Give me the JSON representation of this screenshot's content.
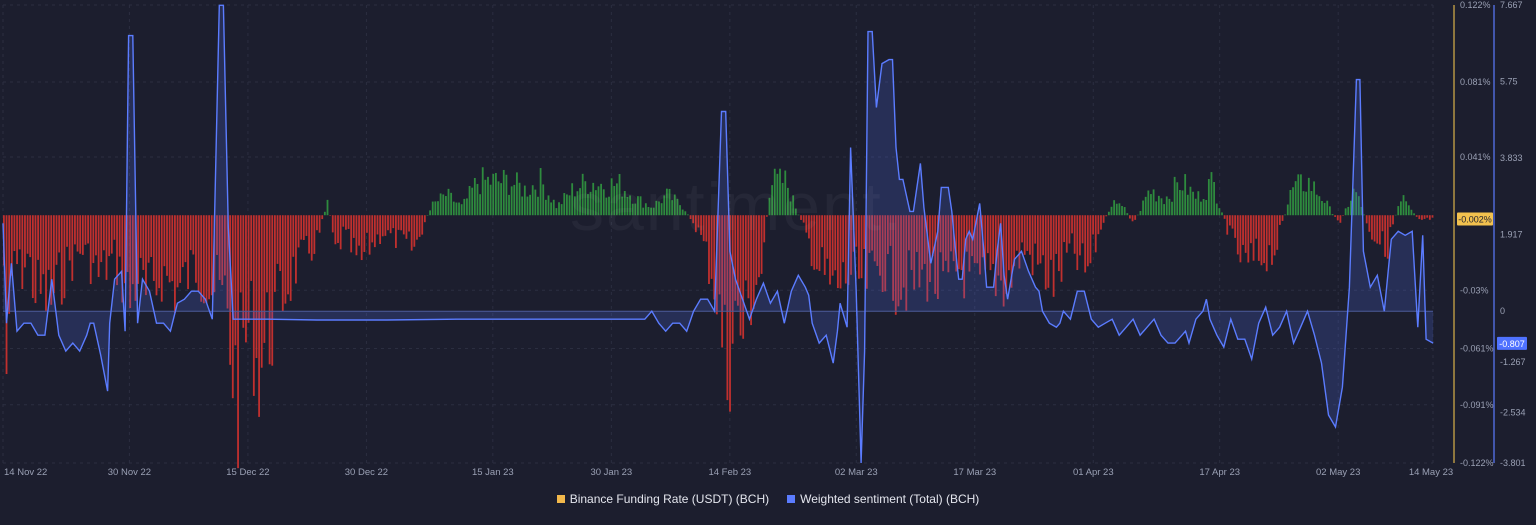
{
  "watermark": "santiment.",
  "colors": {
    "background": "#1c1e2e",
    "funding_positive": "#2e8b3e",
    "funding_negative": "#c0302e",
    "funding_axis": "#d9b24a",
    "sentiment_line": "#5b7cff",
    "sentiment_fill": "rgba(80,110,230,0.22)",
    "grid": "#2b2e40"
  },
  "legend": {
    "funding_label": "Binance Funding Rate (USDT) (BCH)",
    "sentiment_label": "Weighted sentiment (Total) (BCH)",
    "funding_color": "#f2b84b",
    "sentiment_color": "#5b7cff"
  },
  "chart_data": {
    "type": "bar",
    "x_ticks": [
      "14 Nov 22",
      "30 Nov 22",
      "15 Dec 22",
      "30 Dec 22",
      "15 Jan 23",
      "30 Jan 23",
      "14 Feb 23",
      "02 Mar 23",
      "17 Mar 23",
      "01 Apr 23",
      "17 Apr 23",
      "02 May 23",
      "14 May 23"
    ],
    "x_tick_days": [
      0,
      16,
      31,
      46,
      62,
      77,
      92,
      108,
      123,
      138,
      154,
      169,
      181
    ],
    "x_range_days": [
      0,
      181
    ],
    "y_left": {
      "series": "Binance Funding Rate (USDT) (BCH)",
      "ticks": [
        "0.122%",
        "0.081%",
        "0.041%",
        "-0.03%",
        "-0.061%",
        "-0.091%",
        "-0.122%"
      ],
      "tick_values": [
        0.122,
        0.081,
        0.041,
        -0.03,
        -0.061,
        -0.091,
        -0.122
      ],
      "range": [
        -0.122,
        0.122
      ],
      "current_label": "-0.002%",
      "current_value": -0.002
    },
    "y_right": {
      "series": "Weighted sentiment (Total) (BCH)",
      "ticks": [
        "7.667",
        "5.75",
        "3.833",
        "1.917",
        "0",
        "-1.267",
        "-2.534",
        "-3.801"
      ],
      "tick_values": [
        7.667,
        5.75,
        3.833,
        1.917,
        0,
        -1.267,
        -2.534,
        -3.801
      ],
      "range": [
        -3.801,
        7.667
      ],
      "current_label": "-0.807",
      "current_value": -0.807
    },
    "funding_zero_value": 0.01,
    "funding_profile": [
      [
        0,
        -0.03
      ],
      [
        0.5,
        -0.118
      ],
      [
        1.2,
        -0.02
      ],
      [
        2,
        -0.035
      ],
      [
        3,
        -0.025
      ],
      [
        4,
        -0.045
      ],
      [
        6,
        -0.05
      ],
      [
        8,
        -0.03
      ],
      [
        10,
        -0.02
      ],
      [
        12,
        -0.035
      ],
      [
        14,
        -0.025
      ],
      [
        16,
        -0.05
      ],
      [
        17,
        -0.035
      ],
      [
        18,
        -0.05
      ],
      [
        20,
        -0.035
      ],
      [
        22,
        -0.045
      ],
      [
        24,
        -0.03
      ],
      [
        26,
        -0.04
      ],
      [
        28,
        -0.05
      ],
      [
        29.5,
        -0.108
      ],
      [
        30.5,
        -0.07
      ],
      [
        31.5,
        -0.065
      ],
      [
        32,
        -0.09
      ],
      [
        32.5,
        -0.085
      ],
      [
        33.5,
        -0.07
      ],
      [
        35,
        -0.05
      ],
      [
        37,
        -0.03
      ],
      [
        39,
        -0.02
      ],
      [
        40,
        -0.01
      ],
      [
        41,
        0.01
      ],
      [
        42,
        -0.025
      ],
      [
        43,
        -0.01
      ],
      [
        45,
        -0.03
      ],
      [
        46,
        -0.02
      ],
      [
        48,
        -0.01
      ],
      [
        50,
        -0.015
      ],
      [
        52,
        -0.02
      ],
      [
        54,
        0.005
      ],
      [
        56,
        0.012
      ],
      [
        58,
        0.005
      ],
      [
        60,
        0.02
      ],
      [
        62,
        0.02
      ],
      [
        64,
        0.02
      ],
      [
        66,
        0.015
      ],
      [
        68,
        0.02
      ],
      [
        70,
        0.005
      ],
      [
        72,
        0.015
      ],
      [
        74,
        0.02
      ],
      [
        76,
        0.018
      ],
      [
        78,
        0.018
      ],
      [
        80,
        0.01
      ],
      [
        82,
        0.005
      ],
      [
        84,
        0.012
      ],
      [
        86,
        0.005
      ],
      [
        88,
        -0.01
      ],
      [
        90,
        -0.04
      ],
      [
        91.5,
        -0.093
      ],
      [
        92.5,
        -0.06
      ],
      [
        93.5,
        -0.07
      ],
      [
        94.5,
        -0.05
      ],
      [
        96,
        -0.03
      ],
      [
        97,
        0.02
      ],
      [
        99,
        0.02
      ],
      [
        101,
        -0.005
      ],
      [
        103,
        -0.03
      ],
      [
        105,
        -0.045
      ],
      [
        107,
        -0.035
      ],
      [
        109,
        -0.04
      ],
      [
        111,
        -0.03
      ],
      [
        113,
        -0.04
      ],
      [
        115,
        -0.04
      ],
      [
        117,
        -0.035
      ],
      [
        119,
        -0.045
      ],
      [
        121,
        -0.03
      ],
      [
        123,
        -0.045
      ],
      [
        125,
        -0.035
      ],
      [
        127,
        -0.04
      ],
      [
        129,
        -0.02
      ],
      [
        131,
        -0.03
      ],
      [
        133,
        -0.04
      ],
      [
        135,
        -0.02
      ],
      [
        137,
        -0.035
      ],
      [
        139,
        -0.005
      ],
      [
        141,
        0.01
      ],
      [
        143,
        -0.005
      ],
      [
        145,
        0.015
      ],
      [
        147,
        0.01
      ],
      [
        149,
        0.02
      ],
      [
        151,
        0.01
      ],
      [
        153,
        0.02
      ],
      [
        155,
        -0.01
      ],
      [
        157,
        -0.03
      ],
      [
        159,
        -0.025
      ],
      [
        161,
        -0.02
      ],
      [
        163,
        0.015
      ],
      [
        165,
        0.02
      ],
      [
        167,
        0.01
      ],
      [
        169,
        -0.005
      ],
      [
        171,
        0.015
      ],
      [
        173,
        -0.01
      ],
      [
        175,
        -0.02
      ],
      [
        177,
        0.015
      ],
      [
        179,
        -0.003
      ],
      [
        181,
        -0.002
      ]
    ],
    "sentiment_points": [
      [
        0,
        2.2
      ],
      [
        0.5,
        -0.3
      ],
      [
        1.2,
        1.2
      ],
      [
        2,
        -0.5
      ],
      [
        3,
        -0.3
      ],
      [
        4,
        -0.3
      ],
      [
        5,
        -0.6
      ],
      [
        6,
        -0.6
      ],
      [
        7,
        0.8
      ],
      [
        8,
        -0.6
      ],
      [
        9,
        -1.0
      ],
      [
        10,
        -0.8
      ],
      [
        11,
        -1.0
      ],
      [
        12,
        -0.6
      ],
      [
        12.5,
        -0.3
      ],
      [
        13,
        -0.3
      ],
      [
        14,
        -1.1
      ],
      [
        15,
        -2.0
      ],
      [
        15.3,
        -0.3
      ],
      [
        16,
        0.8
      ],
      [
        17,
        1.0
      ],
      [
        17.5,
        -0.5
      ],
      [
        18,
        6.9
      ],
      [
        18.6,
        6.9
      ],
      [
        19.3,
        -0.3
      ],
      [
        20,
        0.8
      ],
      [
        21,
        0.5
      ],
      [
        22,
        -0.3
      ],
      [
        23,
        -0.3
      ],
      [
        24,
        -0.5
      ],
      [
        25,
        0.2
      ],
      [
        26,
        0.3
      ],
      [
        27,
        0.5
      ],
      [
        28,
        0.5
      ],
      [
        29,
        0.3
      ],
      [
        30,
        -0.2
      ],
      [
        31,
        7.66
      ],
      [
        31.6,
        7.66
      ],
      [
        32.3,
        2.1
      ],
      [
        33,
        -0.2
      ],
      [
        34,
        -0.2
      ],
      [
        38,
        -0.2
      ],
      [
        45,
        -0.22
      ],
      [
        55,
        -0.22
      ],
      [
        65,
        -0.2
      ],
      [
        75,
        -0.2
      ],
      [
        85,
        -0.2
      ],
      [
        92,
        -0.2
      ],
      [
        93,
        0.0
      ],
      [
        94,
        -0.3
      ],
      [
        95,
        -0.5
      ],
      [
        96,
        -0.3
      ],
      [
        97,
        -0.3
      ],
      [
        98,
        -0.5
      ],
      [
        99,
        0.0
      ],
      [
        100,
        0.3
      ],
      [
        101,
        0.3
      ],
      [
        102,
        0.0
      ],
      [
        103,
        5.0
      ],
      [
        103.6,
        5.0
      ],
      [
        104.2,
        1.5
      ],
      [
        105,
        0.8
      ],
      [
        106,
        0.3
      ],
      [
        107,
        -0.2
      ],
      [
        108,
        0.3
      ],
      [
        109,
        0.7
      ],
      [
        110,
        0.2
      ],
      [
        111,
        0.5
      ],
      [
        112,
        -0.3
      ],
      [
        113,
        0.5
      ],
      [
        114,
        0.9
      ],
      [
        115,
        0.6
      ],
      [
        115.5,
        0.4
      ],
      [
        116,
        -0.3
      ],
      [
        117,
        -0.8
      ],
      [
        118,
        -0.6
      ],
      [
        119,
        -1.3
      ],
      [
        119.6,
        -0.5
      ],
      [
        120,
        0.2
      ],
      [
        121,
        -0.4
      ],
      [
        121.5,
        4.1
      ],
      [
        122.3,
        0.5
      ],
      [
        123,
        -3.8
      ],
      [
        123.5,
        -1.0
      ],
      [
        124,
        7.0
      ],
      [
        124.6,
        7.0
      ],
      [
        125.2,
        5.1
      ],
      [
        126,
        6.2
      ],
      [
        127,
        6.3
      ],
      [
        127.5,
        6.3
      ],
      [
        128,
        4.1
      ],
      [
        128.5,
        3.3
      ],
      [
        129,
        3.3
      ],
      [
        130,
        2.5
      ],
      [
        130.5,
        2.5
      ],
      [
        131,
        3.1
      ],
      [
        131.5,
        3.7
      ],
      [
        132,
        2.6
      ],
      [
        133,
        1.2
      ],
      [
        134,
        2.0
      ],
      [
        134.5,
        3.1
      ],
      [
        135.5,
        3.1
      ],
      [
        136,
        2.5
      ],
      [
        136.5,
        1.6
      ],
      [
        137,
        0.8
      ],
      [
        137.5,
        0.8
      ],
      [
        138,
        1.8
      ],
      [
        138.5,
        2.0
      ],
      [
        139,
        1.8
      ],
      [
        140,
        2.7
      ],
      [
        140.6,
        1.5
      ],
      [
        141,
        0.6
      ],
      [
        141.5,
        0.6
      ],
      [
        142,
        0.6
      ],
      [
        142.5,
        1.5
      ],
      [
        143,
        2.2
      ],
      [
        143.5,
        0.9
      ],
      [
        144,
        0.3
      ],
      [
        145,
        1.3
      ],
      [
        146,
        1.5
      ],
      [
        147,
        1.0
      ],
      [
        148,
        0.6
      ],
      [
        148.5,
        0.5
      ],
      [
        149,
        0.0
      ],
      [
        150,
        -0.3
      ],
      [
        151,
        -0.4
      ],
      [
        151.5,
        -0.3
      ],
      [
        152,
        0.0
      ],
      [
        153,
        -0.2
      ],
      [
        154,
        0.5
      ],
      [
        155,
        0.5
      ],
      [
        156,
        -0.2
      ],
      [
        157,
        -0.4
      ],
      [
        158,
        -0.3
      ],
      [
        159,
        -0.2
      ],
      [
        160,
        -0.6
      ],
      [
        161,
        -0.4
      ],
      [
        162,
        -0.2
      ],
      [
        163,
        -0.6
      ],
      [
        164,
        -0.4
      ],
      [
        165,
        -0.2
      ],
      [
        166,
        -0.6
      ],
      [
        167,
        -0.8
      ],
      [
        168,
        -0.8
      ],
      [
        169,
        -0.6
      ],
      [
        169.5,
        -0.5
      ],
      [
        170,
        -0.8
      ],
      [
        171,
        -0.2
      ],
      [
        172,
        0.0
      ],
      [
        172.5,
        0.3
      ],
      [
        173,
        -0.2
      ],
      [
        174,
        -0.6
      ],
      [
        175,
        -0.9
      ],
      [
        176,
        -0.2
      ],
      [
        177,
        -0.7
      ],
      [
        178,
        -0.7
      ],
      [
        179,
        -1.2
      ],
      [
        180,
        -0.3
      ],
      [
        181,
        0.1
      ],
      [
        182,
        -0.6
      ],
      [
        183,
        -0.4
      ],
      [
        184,
        0.0
      ],
      [
        185,
        -0.8
      ],
      [
        186,
        -0.4
      ],
      [
        187,
        0.0
      ],
      [
        188,
        -0.6
      ],
      [
        189,
        -1.3
      ],
      [
        190,
        -2.6
      ],
      [
        191,
        -2.9
      ],
      [
        192,
        -1.9
      ],
      [
        193,
        0.6
      ],
      [
        194,
        5.8
      ],
      [
        194.5,
        5.8
      ],
      [
        195,
        1.5
      ],
      [
        196,
        0.6
      ],
      [
        197,
        0.9
      ],
      [
        198,
        0.0
      ],
      [
        199,
        1.8
      ],
      [
        200,
        2.0
      ],
      [
        201,
        1.9
      ],
      [
        202,
        2.0
      ],
      [
        202.8,
        -0.4
      ],
      [
        203.5,
        1.9
      ],
      [
        204,
        -0.7
      ],
      [
        205,
        -0.8
      ]
    ],
    "sentiment_x_scale": 0.883
  }
}
